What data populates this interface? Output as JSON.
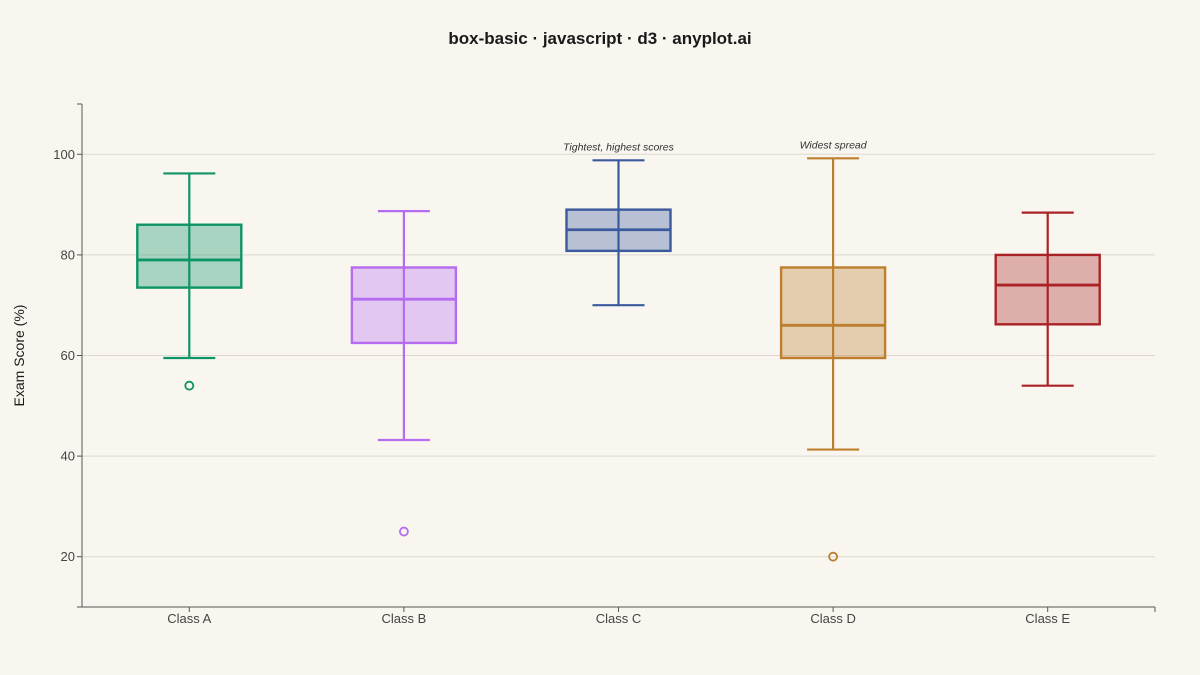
{
  "chart_data": {
    "type": "box",
    "title": "box-basic · javascript · d3 · anyplot.ai",
    "xlabel": "",
    "ylabel": "Exam Score (%)",
    "ylim": [
      10,
      110
    ],
    "yticks": [
      20,
      40,
      60,
      80,
      100
    ],
    "grid": true,
    "categories": [
      "Class A",
      "Class B",
      "Class C",
      "Class D",
      "Class E"
    ],
    "series": [
      {
        "category": "Class A",
        "color": "#0e9466",
        "whisker_low": 59.5,
        "q1": 73.5,
        "median": 79,
        "q3": 86,
        "whisker_high": 96.2,
        "outliers": [
          54
        ]
      },
      {
        "category": "Class B",
        "color": "#b56cf0",
        "whisker_low": 43.2,
        "q1": 62.5,
        "median": 71.2,
        "q3": 77.5,
        "whisker_high": 88.7,
        "outliers": [
          25
        ]
      },
      {
        "category": "Class C",
        "color": "#3b5a9e",
        "whisker_low": 70,
        "q1": 80.8,
        "median": 85,
        "q3": 89,
        "whisker_high": 98.8,
        "outliers": []
      },
      {
        "category": "Class D",
        "color": "#bd7f2e",
        "whisker_low": 41.3,
        "q1": 59.5,
        "median": 66,
        "q3": 77.5,
        "whisker_high": 99.2,
        "outliers": [
          20
        ]
      },
      {
        "category": "Class E",
        "color": "#aa2226",
        "whisker_low": 54,
        "q1": 66.2,
        "median": 74,
        "q3": 80,
        "whisker_high": 88.4,
        "outliers": []
      }
    ],
    "annotations": [
      {
        "category": "Class C",
        "text": "Tightest, highest scores"
      },
      {
        "category": "Class D",
        "text": "Widest spread"
      }
    ]
  }
}
